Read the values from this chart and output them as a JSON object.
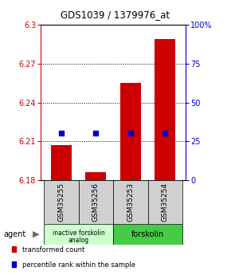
{
  "title": "GDS1039 / 1379976_at",
  "samples": [
    "GSM35255",
    "GSM35256",
    "GSM35253",
    "GSM35254"
  ],
  "bar_values": [
    6.207,
    6.186,
    6.255,
    6.289
  ],
  "blue_values": [
    6.216,
    6.216,
    6.216,
    6.216
  ],
  "bar_bottom": 6.18,
  "ylim": [
    6.18,
    6.3
  ],
  "yticks_left": [
    6.18,
    6.21,
    6.24,
    6.27,
    6.3
  ],
  "yticks_right": [
    0,
    25,
    50,
    75,
    100
  ],
  "yticks_right_labels": [
    "0",
    "25",
    "50",
    "75",
    "100%"
  ],
  "bar_color": "#cc0000",
  "blue_color": "#0000cc",
  "agent_labels": [
    "inactive forskolin\nanalog",
    "forskolin"
  ],
  "agent_colors": [
    "#ccffcc",
    "#44cc44"
  ],
  "bar_width": 0.6,
  "blue_marker_size": 5,
  "grid_yticks": [
    6.21,
    6.24,
    6.27
  ]
}
